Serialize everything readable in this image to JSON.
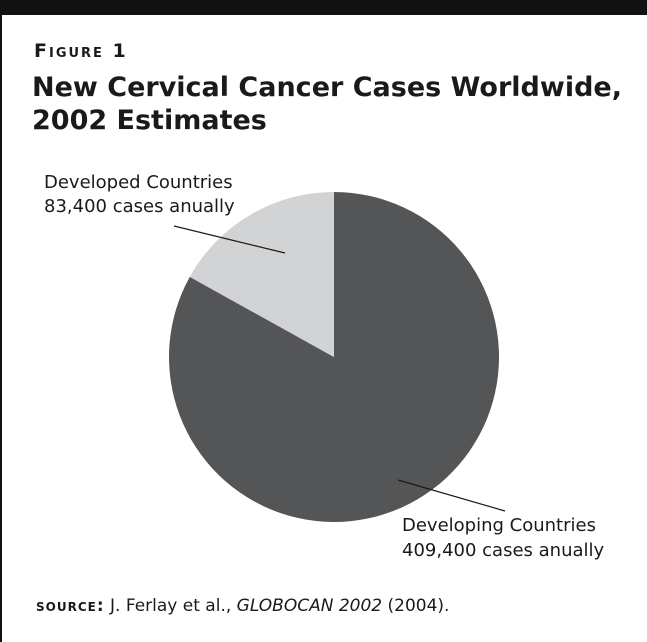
{
  "figure": {
    "label": "Figure 1",
    "title_line1": "New Cervical Cancer Cases Worldwide,",
    "title_line2": "2002 Estimates"
  },
  "chart_data": {
    "type": "pie",
    "title": "New Cervical Cancer Cases Worldwide, 2002 Estimates",
    "slices": [
      {
        "name": "Developed Countries",
        "value": 83400,
        "label_line1": "Developed Countries",
        "label_line2": "83,400 cases anually",
        "color": "#d2d3d5"
      },
      {
        "name": "Developing Countries",
        "value": 409400,
        "label_line1": "Developing Countries",
        "label_line2": "409,400 cases anually",
        "color": "#545557"
      }
    ]
  },
  "source": {
    "label": "source:",
    "authors": "J. Ferlay et al.,",
    "title": "GLOBOCAN 2002",
    "year": "(2004)."
  }
}
